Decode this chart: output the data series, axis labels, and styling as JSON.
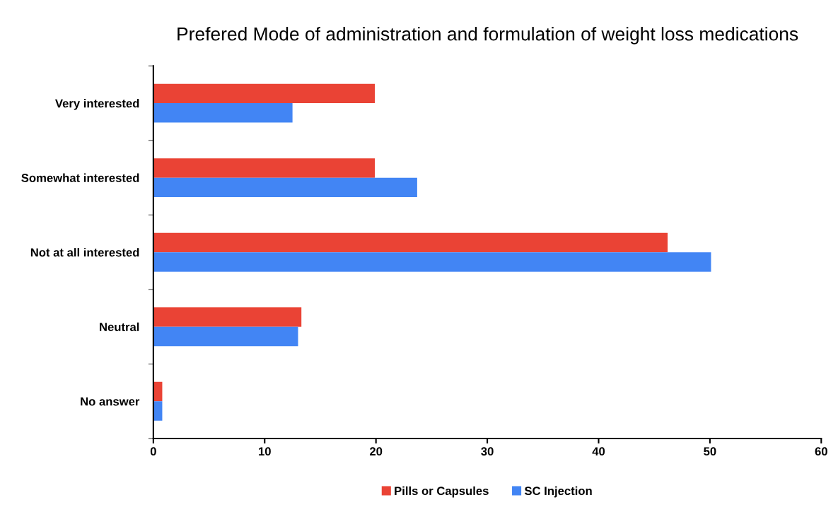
{
  "chart_data": {
    "type": "bar",
    "orientation": "horizontal",
    "title": "Prefered Mode of administration and formulation of weight loss medications",
    "categories": [
      "Very interested",
      "Somewhat interested",
      "Not at all interested",
      "Neutral",
      "No answer"
    ],
    "series": [
      {
        "name": "Pills or Capsules",
        "color": "#ea4335",
        "values": [
          19.9,
          19.9,
          46.2,
          13.3,
          0.8
        ]
      },
      {
        "name": "SC Injection",
        "color": "#4285f4",
        "values": [
          12.5,
          23.7,
          50.1,
          13.0,
          0.8
        ]
      }
    ],
    "xlim": [
      0,
      60
    ],
    "xticks": [
      0,
      10,
      20,
      30,
      40,
      50,
      60
    ],
    "grid": false,
    "legend": "bottom"
  }
}
